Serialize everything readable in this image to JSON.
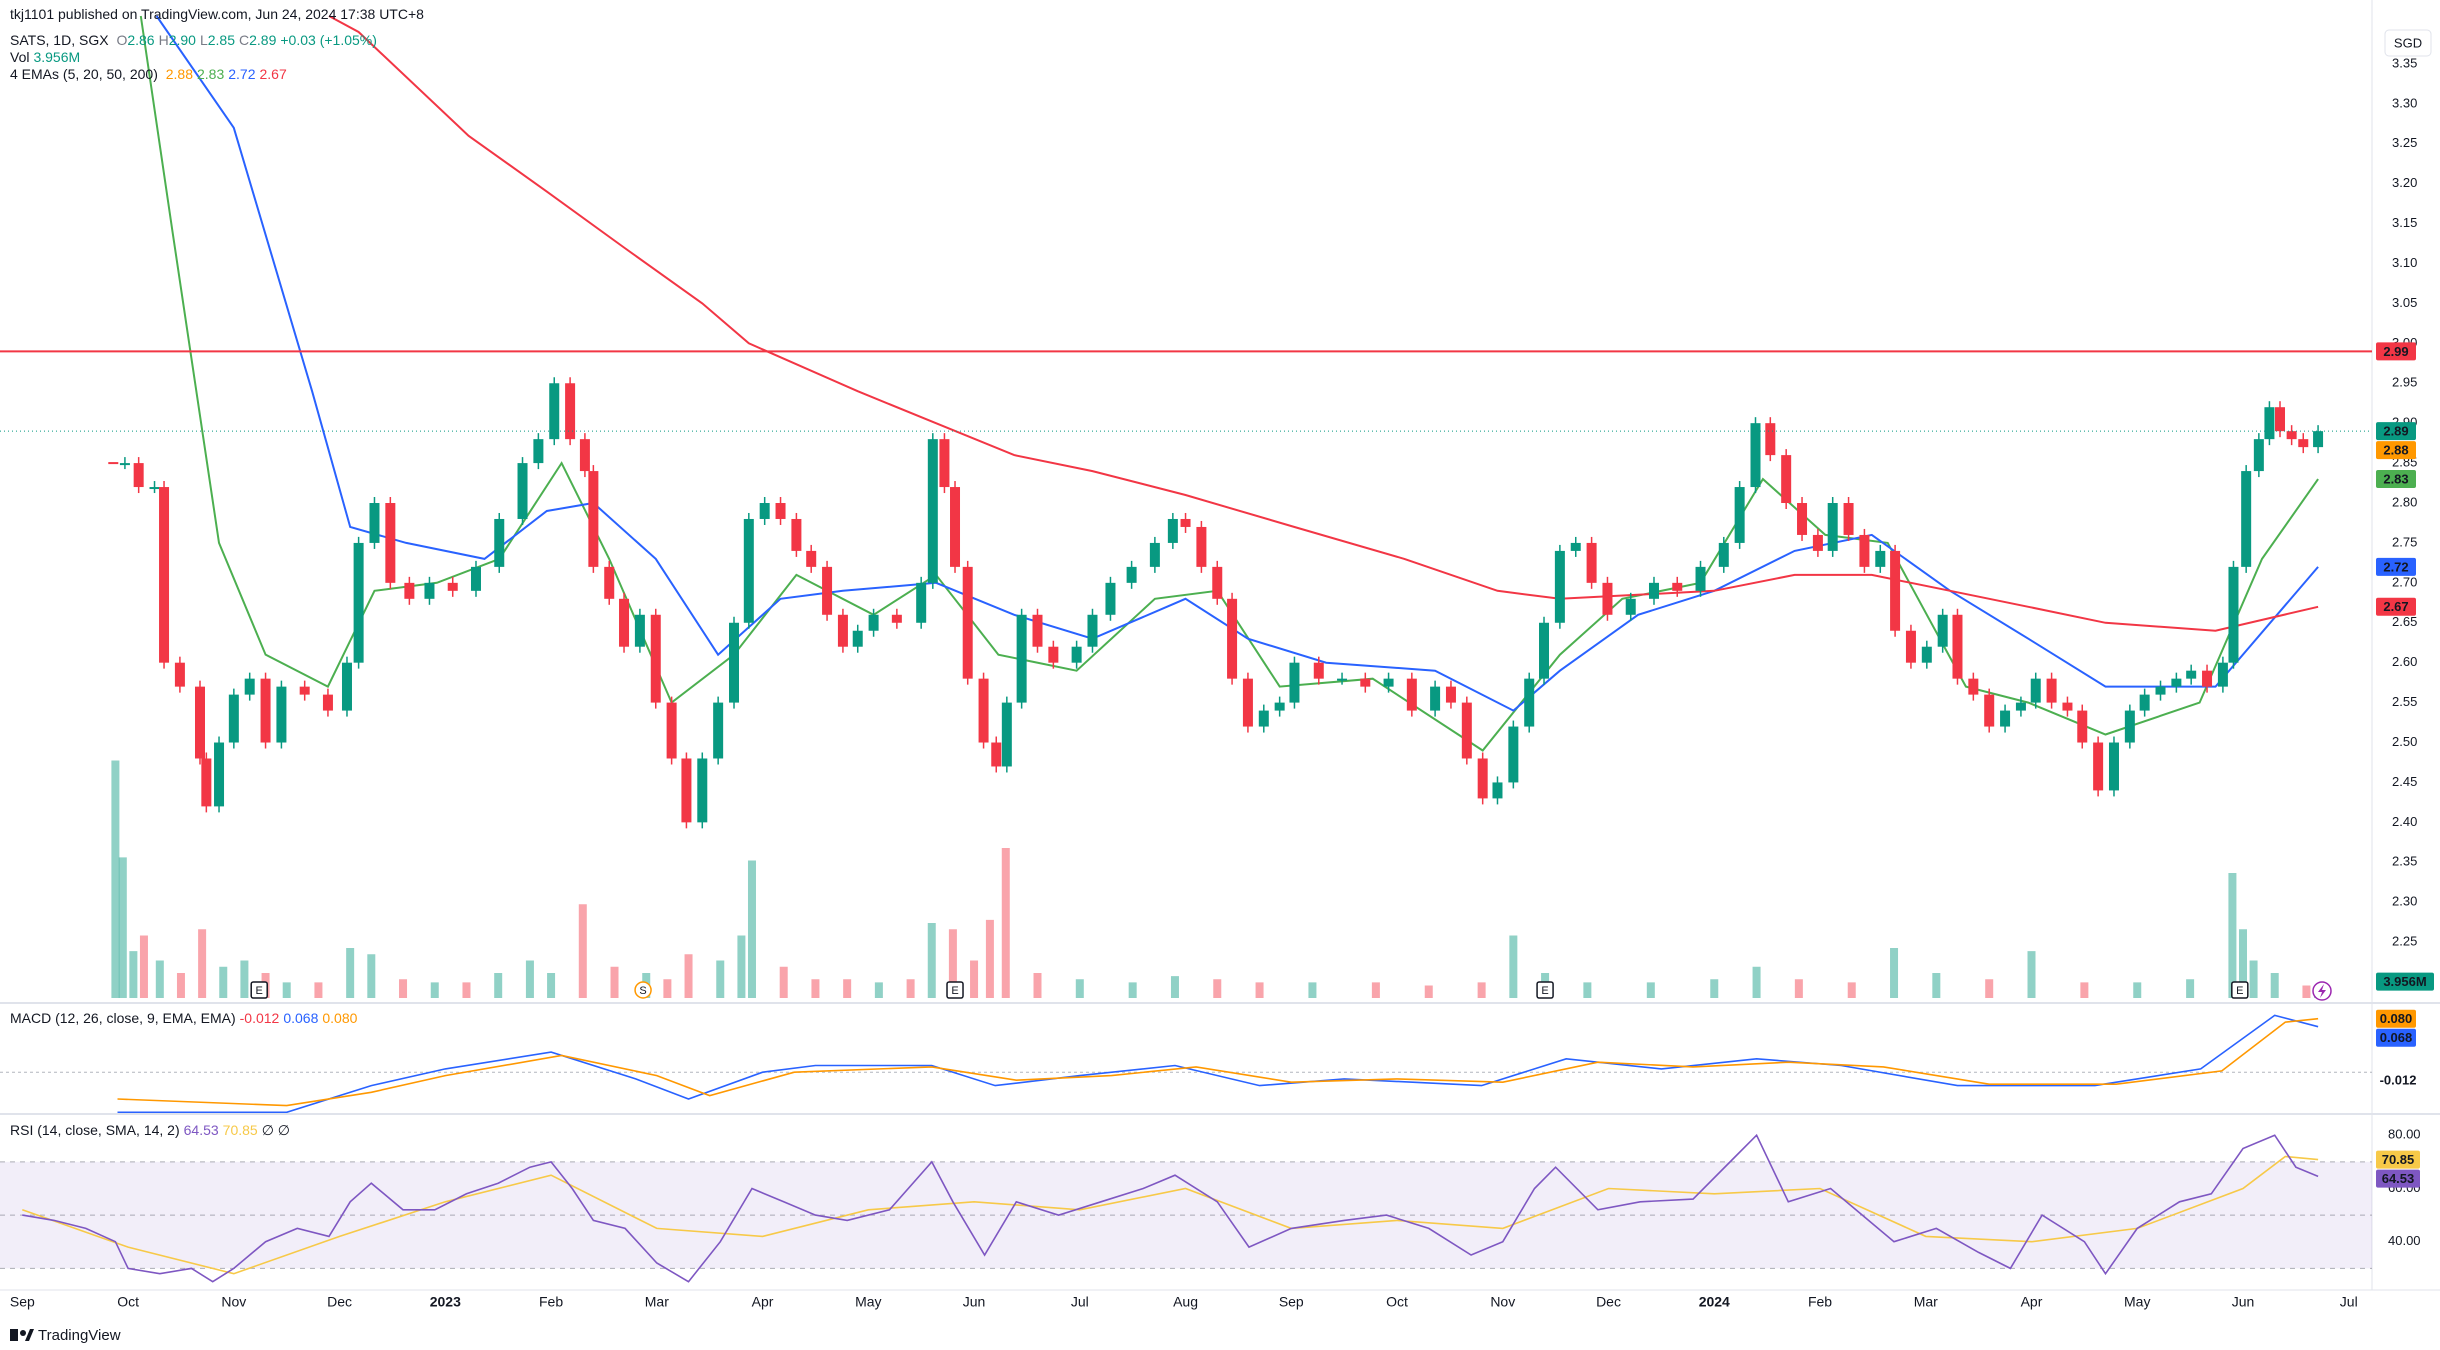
{
  "header": {
    "publisher": "tkj1101 published on TradingView.com, Jun 24, 2024 17:38 UTC+8",
    "symbol": "SATS, 1D, SGX",
    "ohlc": [
      "O",
      "2.86",
      "H",
      "2.90",
      "L",
      "2.85",
      "C",
      "2.89"
    ],
    "change": "+0.03 (+1.05%)",
    "currency": "SGD"
  },
  "footer": {
    "brand": "TradingView"
  },
  "chart_data": {
    "type": "candlestick",
    "xlim": [
      -0.06,
      22.22
    ],
    "ylim": [
      2.18,
      3.41
    ],
    "grid": false,
    "xticks": [
      {
        "value": 0,
        "label": "Sep"
      },
      {
        "value": 1,
        "label": "Oct"
      },
      {
        "value": 2,
        "label": "Nov"
      },
      {
        "value": 3,
        "label": "Dec"
      },
      {
        "value": 4,
        "label": "2023"
      },
      {
        "value": 5,
        "label": "Feb"
      },
      {
        "value": 6,
        "label": "Mar"
      },
      {
        "value": 7,
        "label": "Apr"
      },
      {
        "value": 8,
        "label": "May"
      },
      {
        "value": 9,
        "label": "Jun"
      },
      {
        "value": 10,
        "label": "Jul"
      },
      {
        "value": 11,
        "label": "Aug"
      },
      {
        "value": 12,
        "label": "Sep"
      },
      {
        "value": 13,
        "label": "Oct"
      },
      {
        "value": 14,
        "label": "Nov"
      },
      {
        "value": 15,
        "label": "Dec"
      },
      {
        "value": 16,
        "label": "2024"
      },
      {
        "value": 17,
        "label": "Feb"
      },
      {
        "value": 18,
        "label": "Mar"
      },
      {
        "value": 19,
        "label": "Apr"
      },
      {
        "value": 20,
        "label": "May"
      },
      {
        "value": 21,
        "label": "Jun"
      },
      {
        "value": 22,
        "label": "Jul"
      }
    ],
    "yticks": [
      2.25,
      {
        "value": 2.3,
        "label": "2.30"
      },
      2.35,
      {
        "value": 2.4,
        "label": "2.40"
      },
      2.45,
      {
        "value": 2.5,
        "label": "2.50"
      },
      2.55,
      {
        "value": 2.6,
        "label": "2.60"
      },
      2.65,
      {
        "value": 2.7,
        "label": "2.70"
      },
      2.75,
      {
        "value": 2.8,
        "label": "2.80"
      },
      2.85,
      {
        "value": 2.9,
        "label": "2.90"
      },
      2.95,
      {
        "value": 3,
        "label": "3.00"
      },
      3.05,
      {
        "value": 3.1,
        "label": "3.10"
      },
      3.15,
      {
        "value": 3.2,
        "label": "3.20"
      },
      3.25,
      {
        "value": 3.3,
        "label": "3.30"
      },
      3.35
    ],
    "up_color": "#089981",
    "down_color": "#f23645",
    "hline": {
      "value": 2.99,
      "color": "#f23645"
    },
    "current_price": 2.89,
    "candles": {
      "x": [
        0.86,
        0.97,
        1.1,
        1.25,
        1.34,
        1.49,
        1.68,
        1.74,
        1.86,
        2.0,
        2.15,
        2.3,
        2.45,
        2.67,
        2.89,
        3.07,
        3.18,
        3.33,
        3.48,
        3.66,
        3.85,
        4.07,
        4.29,
        4.51,
        4.73,
        4.88,
        5.03,
        5.18,
        5.32,
        5.4,
        5.55,
        5.69,
        5.84,
        5.99,
        6.14,
        6.28,
        6.43,
        6.58,
        6.73,
        6.87,
        7.02,
        7.17,
        7.32,
        7.46,
        7.61,
        7.76,
        7.9,
        8.05,
        8.27,
        8.5,
        8.61,
        8.72,
        8.82,
        8.94,
        9.09,
        9.21,
        9.31,
        9.45,
        9.6,
        9.75,
        9.97,
        10.12,
        10.29,
        10.49,
        10.71,
        10.88,
        11.0,
        11.15,
        11.3,
        11.44,
        11.59,
        11.74,
        11.89,
        12.03,
        12.26,
        12.48,
        12.7,
        12.92,
        13.14,
        13.36,
        13.51,
        13.66,
        13.81,
        13.95,
        14.1,
        14.25,
        14.39,
        14.54,
        14.69,
        14.84,
        14.99,
        15.21,
        15.43,
        15.65,
        15.87,
        16.09,
        16.24,
        16.39,
        16.53,
        16.68,
        16.83,
        16.98,
        17.12,
        17.27,
        17.42,
        17.57,
        17.71,
        17.86,
        18.01,
        18.16,
        18.3,
        18.45,
        18.6,
        18.75,
        18.9,
        19.04,
        19.19,
        19.34,
        19.48,
        19.63,
        19.78,
        19.93,
        20.07,
        20.22,
        20.37,
        20.51,
        20.66,
        20.81,
        20.91,
        21.03,
        21.15,
        21.25,
        21.35,
        21.46,
        21.57,
        21.71
      ],
      "close": [
        2.85,
        2.85,
        2.82,
        2.82,
        2.6,
        2.57,
        2.48,
        2.42,
        2.5,
        2.56,
        2.58,
        2.5,
        2.57,
        2.56,
        2.54,
        2.6,
        2.75,
        2.8,
        2.7,
        2.68,
        2.7,
        2.69,
        2.72,
        2.78,
        2.85,
        2.88,
        2.95,
        2.88,
        2.84,
        2.72,
        2.68,
        2.62,
        2.66,
        2.55,
        2.48,
        2.4,
        2.48,
        2.55,
        2.65,
        2.78,
        2.8,
        2.78,
        2.74,
        2.72,
        2.66,
        2.62,
        2.64,
        2.66,
        2.65,
        2.7,
        2.88,
        2.82,
        2.72,
        2.58,
        2.5,
        2.47,
        2.55,
        2.66,
        2.62,
        2.6,
        2.62,
        2.66,
        2.7,
        2.72,
        2.75,
        2.78,
        2.77,
        2.72,
        2.68,
        2.58,
        2.52,
        2.54,
        2.55,
        2.6,
        2.58,
        2.58,
        2.57,
        2.58,
        2.54,
        2.57,
        2.55,
        2.48,
        2.43,
        2.45,
        2.52,
        2.58,
        2.65,
        2.74,
        2.75,
        2.7,
        2.66,
        2.68,
        2.7,
        2.69,
        2.72,
        2.75,
        2.82,
        2.9,
        2.86,
        2.8,
        2.76,
        2.74,
        2.8,
        2.76,
        2.72,
        2.74,
        2.64,
        2.6,
        2.62,
        2.66,
        2.58,
        2.56,
        2.52,
        2.54,
        2.55,
        2.58,
        2.55,
        2.54,
        2.5,
        2.44,
        2.5,
        2.54,
        2.56,
        2.57,
        2.58,
        2.59,
        2.57,
        2.6,
        2.72,
        2.84,
        2.88,
        2.92,
        2.89,
        2.88,
        2.87,
        2.89
      ]
    },
    "emas": {
      "label": "4 EMAs (5, 20, 50, 200)",
      "lines": [
        {
          "color": "#ff9800",
          "last": 2.88
        },
        {
          "color": "#4caf50",
          "last": 2.83,
          "x": [
            1.12,
            1.42,
            1.86,
            2.3,
            2.89,
            3.33,
            3.92,
            4.51,
            5.1,
            5.55,
            6.14,
            6.73,
            7.32,
            8.05,
            8.64,
            9.23,
            9.97,
            10.71,
            11.3,
            11.89,
            12.77,
            13.81,
            14.54,
            15.13,
            15.87,
            16.46,
            17.05,
            17.64,
            18.38,
            18.97,
            19.7,
            20.59,
            21.18,
            21.71
          ],
          "values": [
            3.41,
            3.14,
            2.75,
            2.61,
            2.57,
            2.69,
            2.7,
            2.73,
            2.85,
            2.73,
            2.55,
            2.61,
            2.71,
            2.66,
            2.71,
            2.61,
            2.59,
            2.68,
            2.69,
            2.57,
            2.58,
            2.49,
            2.61,
            2.68,
            2.7,
            2.83,
            2.76,
            2.75,
            2.57,
            2.55,
            2.51,
            2.55,
            2.73,
            2.83
          ]
        },
        {
          "color": "#2962ff",
          "last": 2.72,
          "x": [
            1.27,
            2.0,
            2.74,
            3.1,
            3.63,
            4.37,
            4.96,
            5.4,
            5.99,
            6.58,
            7.17,
            7.76,
            8.64,
            9.38,
            10.12,
            11.0,
            11.59,
            12.33,
            13.36,
            14.1,
            14.54,
            15.28,
            16.0,
            16.76,
            17.49,
            18.23,
            18.97,
            19.7,
            20.74,
            21.71
          ],
          "values": [
            3.41,
            3.27,
            2.94,
            2.77,
            2.75,
            2.73,
            2.79,
            2.8,
            2.73,
            2.61,
            2.68,
            2.69,
            2.7,
            2.66,
            2.63,
            2.68,
            2.63,
            2.6,
            2.59,
            2.54,
            2.59,
            2.66,
            2.69,
            2.74,
            2.76,
            2.69,
            2.63,
            2.57,
            2.57,
            2.72
          ]
        },
        {
          "color": "#f23645",
          "last": 2.67,
          "x": [
            2.9,
            3.18,
            4.22,
            4.96,
            5.69,
            6.43,
            6.87,
            7.9,
            8.64,
            9.38,
            10.12,
            11.0,
            12.03,
            13.07,
            13.95,
            14.54,
            16.0,
            16.76,
            17.49,
            18.23,
            18.97,
            19.7,
            20.74,
            21.71
          ],
          "values": [
            3.41,
            3.39,
            3.26,
            3.19,
            3.12,
            3.05,
            3.0,
            2.94,
            2.9,
            2.86,
            2.84,
            2.81,
            2.77,
            2.73,
            2.69,
            2.68,
            2.69,
            2.71,
            2.71,
            2.69,
            2.67,
            2.65,
            2.64,
            2.67
          ]
        }
      ]
    },
    "volume": {
      "label": "Vol",
      "last": {
        "value": 3.956,
        "label": "3.956M"
      },
      "ylim": [
        0,
        80
      ],
      "x": [
        0.88,
        0.95,
        1.05,
        1.15,
        1.3,
        1.5,
        1.7,
        1.9,
        2.1,
        2.3,
        2.5,
        2.8,
        3.1,
        3.3,
        3.6,
        3.9,
        4.2,
        4.5,
        4.8,
        5.0,
        5.3,
        5.6,
        5.9,
        6.1,
        6.3,
        6.6,
        6.8,
        6.9,
        7.2,
        7.5,
        7.8,
        8.1,
        8.4,
        8.6,
        8.8,
        9.0,
        9.15,
        9.3,
        9.6,
        10.0,
        10.5,
        10.9,
        11.3,
        11.7,
        12.2,
        12.8,
        13.3,
        13.8,
        14.1,
        14.4,
        14.8,
        15.4,
        16.0,
        16.4,
        16.8,
        17.3,
        17.7,
        18.1,
        18.6,
        19.0,
        19.5,
        20.0,
        20.5,
        20.9,
        21.0,
        21.1,
        21.3,
        21.6,
        21.71
      ],
      "values": [
        76,
        45,
        15,
        20,
        12,
        8,
        22,
        10,
        12,
        8,
        5,
        5,
        16,
        14,
        6,
        5,
        5,
        8,
        12,
        8,
        30,
        10,
        8,
        6,
        14,
        12,
        20,
        44,
        10,
        6,
        6,
        5,
        6,
        24,
        22,
        12,
        25,
        48,
        8,
        6,
        5,
        7,
        6,
        5,
        5,
        5,
        4,
        5,
        20,
        8,
        5,
        5,
        6,
        10,
        6,
        5,
        16,
        8,
        6,
        15,
        5,
        5,
        6,
        40,
        22,
        12,
        8,
        4,
        3.956
      ]
    },
    "events": [
      {
        "x": 2.24,
        "label": "E"
      },
      {
        "x": 5.87,
        "label": "S"
      },
      {
        "x": 8.82,
        "label": "E"
      },
      {
        "x": 14.4,
        "label": "E"
      },
      {
        "x": 20.97,
        "label": "E"
      }
    ],
    "macd": {
      "label": "MACD (12, 26, close, 9, EMA, EMA)",
      "ylim": [
        -0.058,
        0.099
      ],
      "hist_last": -0.012,
      "macd_line": {
        "color": "#2962ff",
        "last": 0.068,
        "x": [
          0.9,
          2.5,
          3.3,
          4.0,
          5.0,
          5.8,
          6.3,
          7.0,
          7.5,
          8.6,
          9.2,
          10.0,
          10.9,
          11.7,
          12.5,
          13.8,
          14.6,
          15.5,
          16.4,
          17.2,
          18.3,
          19.6,
          20.6,
          21.3,
          21.71
        ],
        "values": [
          -0.06,
          -0.06,
          -0.02,
          0.005,
          0.03,
          -0.01,
          -0.04,
          0.0,
          0.01,
          0.01,
          -0.02,
          -0.005,
          0.01,
          -0.02,
          -0.01,
          -0.02,
          0.02,
          0.005,
          0.02,
          0.01,
          -0.02,
          -0.02,
          0.005,
          0.085,
          0.068
        ]
      },
      "signal_line": {
        "color": "#ff9800",
        "last": {
          "value": 0.08,
          "label": "0.080"
        },
        "x": [
          0.9,
          2.5,
          3.3,
          4.0,
          5.1,
          6.0,
          6.5,
          7.3,
          8.6,
          9.4,
          10.3,
          11.1,
          12.0,
          13.0,
          14.0,
          14.9,
          15.8,
          16.7,
          17.6,
          18.6,
          19.8,
          20.8,
          21.4,
          21.71
        ],
        "values": [
          -0.04,
          -0.05,
          -0.03,
          -0.005,
          0.025,
          -0.005,
          -0.035,
          0.0,
          0.008,
          -0.012,
          -0.005,
          0.008,
          -0.015,
          -0.01,
          -0.015,
          0.015,
          0.008,
          0.015,
          0.008,
          -0.018,
          -0.018,
          0.002,
          0.075,
          0.08
        ]
      }
    },
    "rsi": {
      "label": "RSI (14, close, SMA, 14, 2)",
      "ylim": [
        23,
        87.6
      ],
      "upper": 70,
      "middle": 50,
      "lower": 30,
      "extra": "∅ ∅",
      "yticks": [
        {
          "value": 80,
          "label": "80.00"
        },
        {
          "value": 60,
          "label": "60.00"
        },
        {
          "value": 40,
          "label": "40.00"
        }
      ],
      "rsi_line": {
        "color": "#7e57c2",
        "last": 64.53,
        "x": [
          0.0,
          0.3,
          0.6,
          0.88,
          1.0,
          1.3,
          1.6,
          1.8,
          2.0,
          2.3,
          2.6,
          2.9,
          3.1,
          3.3,
          3.6,
          3.9,
          4.2,
          4.5,
          4.8,
          5.0,
          5.2,
          5.4,
          5.7,
          6.0,
          6.3,
          6.6,
          6.9,
          7.2,
          7.5,
          7.8,
          8.2,
          8.6,
          8.8,
          9.1,
          9.4,
          9.8,
          10.2,
          10.6,
          10.9,
          11.3,
          11.6,
          12.0,
          12.5,
          12.9,
          13.3,
          13.7,
          14.0,
          14.3,
          14.5,
          14.9,
          15.3,
          15.8,
          16.2,
          16.4,
          16.7,
          17.1,
          17.4,
          17.7,
          18.1,
          18.5,
          18.8,
          19.1,
          19.5,
          19.7,
          20.0,
          20.4,
          20.7,
          21.0,
          21.3,
          21.5,
          21.71
        ],
        "values": [
          50,
          48,
          45,
          40,
          30,
          28,
          30,
          25,
          30,
          40,
          45,
          42,
          55,
          62,
          52,
          52,
          58,
          62,
          68,
          70,
          60,
          48,
          45,
          32,
          25,
          40,
          60,
          55,
          50,
          48,
          52,
          70,
          55,
          35,
          55,
          50,
          55,
          60,
          65,
          55,
          38,
          45,
          48,
          50,
          45,
          35,
          40,
          60,
          68,
          52,
          55,
          56,
          72,
          80,
          55,
          60,
          50,
          40,
          45,
          36,
          30,
          50,
          40,
          28,
          45,
          55,
          58,
          75,
          80,
          68,
          64.53
        ]
      },
      "sma_line": {
        "color": "#f7c948",
        "last": 70.85,
        "x": [
          0.0,
          1.0,
          2.0,
          3.0,
          4.0,
          5.0,
          6.0,
          7.0,
          8.0,
          9.0,
          10.0,
          11.0,
          12.0,
          13.0,
          14.0,
          15.0,
          16.0,
          17.0,
          18.0,
          19.0,
          20.0,
          21.0,
          21.4,
          21.71
        ],
        "values": [
          52,
          38,
          28,
          42,
          55,
          65,
          45,
          42,
          52,
          55,
          52,
          60,
          45,
          48,
          45,
          60,
          58,
          60,
          42,
          40,
          45,
          60,
          72,
          70.85
        ]
      }
    }
  }
}
